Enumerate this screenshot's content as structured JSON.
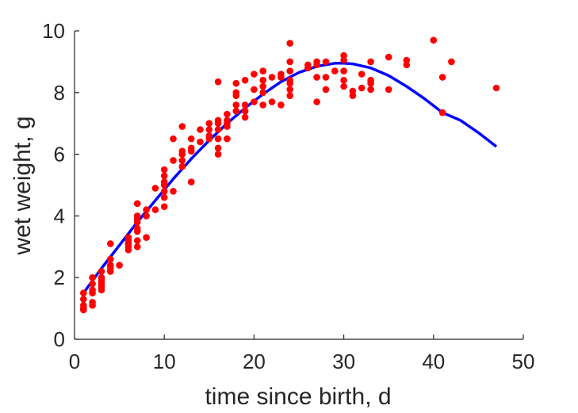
{
  "chart_data": {
    "type": "scatter",
    "xlabel": "time since birth, d",
    "ylabel": "wet weight, g",
    "xlim": [
      0,
      50
    ],
    "ylim": [
      0,
      10
    ],
    "xticks": [
      0,
      10,
      20,
      30,
      40,
      50
    ],
    "yticks": [
      0,
      2,
      4,
      6,
      8,
      10
    ],
    "grid": false,
    "series": [
      {
        "kind": "scatter",
        "color": "#ff0000",
        "points": [
          [
            1,
            1.5
          ],
          [
            1,
            1.3
          ],
          [
            1,
            1.1
          ],
          [
            1,
            1.0
          ],
          [
            1,
            0.95
          ],
          [
            2,
            2.0
          ],
          [
            2,
            1.8
          ],
          [
            2,
            1.6
          ],
          [
            2,
            1.5
          ],
          [
            2,
            1.2
          ],
          [
            2,
            1.1
          ],
          [
            3,
            2.2
          ],
          [
            3,
            2.0
          ],
          [
            3,
            1.9
          ],
          [
            3,
            1.8
          ],
          [
            3,
            1.7
          ],
          [
            3,
            1.6
          ],
          [
            4,
            3.1
          ],
          [
            4,
            2.6
          ],
          [
            4,
            2.4
          ],
          [
            4,
            2.3
          ],
          [
            4,
            2.2
          ],
          [
            5,
            2.4
          ],
          [
            6,
            3.3
          ],
          [
            6,
            3.2
          ],
          [
            6,
            3.1
          ],
          [
            6,
            3.0
          ],
          [
            6,
            2.9
          ],
          [
            7,
            4.4
          ],
          [
            7,
            4.0
          ],
          [
            7,
            3.9
          ],
          [
            7,
            3.8
          ],
          [
            7,
            3.6
          ],
          [
            7,
            3.5
          ],
          [
            7,
            3.2
          ],
          [
            7,
            3.0
          ],
          [
            8,
            4.2
          ],
          [
            8,
            4.0
          ],
          [
            8,
            3.3
          ],
          [
            9,
            4.9
          ],
          [
            9,
            4.2
          ],
          [
            10,
            5.5
          ],
          [
            10,
            5.3
          ],
          [
            10,
            5.1
          ],
          [
            10,
            5.0
          ],
          [
            10,
            4.8
          ],
          [
            10,
            4.6
          ],
          [
            10,
            4.3
          ],
          [
            11,
            6.5
          ],
          [
            11,
            5.8
          ],
          [
            11,
            4.8
          ],
          [
            12,
            6.9
          ],
          [
            12,
            6.1
          ],
          [
            12,
            6.0
          ],
          [
            12,
            5.8
          ],
          [
            12,
            5.6
          ],
          [
            13,
            6.5
          ],
          [
            13,
            6.2
          ],
          [
            13,
            6.1
          ],
          [
            13,
            5.1
          ],
          [
            14,
            6.8
          ],
          [
            14,
            6.4
          ],
          [
            15,
            7.0
          ],
          [
            15,
            6.8
          ],
          [
            15,
            6.6
          ],
          [
            15,
            6.5
          ],
          [
            16,
            8.35
          ],
          [
            16,
            7.1
          ],
          [
            16,
            7.0
          ],
          [
            16,
            6.8
          ],
          [
            16,
            6.5
          ],
          [
            16,
            6.2
          ],
          [
            16,
            6.0
          ],
          [
            17,
            7.3
          ],
          [
            17,
            7.1
          ],
          [
            17,
            7.0
          ],
          [
            17,
            6.9
          ],
          [
            17,
            6.5
          ],
          [
            18,
            8.3
          ],
          [
            18,
            8.0
          ],
          [
            18,
            7.9
          ],
          [
            18,
            7.6
          ],
          [
            18,
            7.4
          ],
          [
            19,
            8.4
          ],
          [
            19,
            7.6
          ],
          [
            19,
            7.4
          ],
          [
            19,
            7.2
          ],
          [
            20,
            8.6
          ],
          [
            20,
            8.1
          ],
          [
            20,
            7.7
          ],
          [
            21,
            8.7
          ],
          [
            21,
            8.4
          ],
          [
            21,
            8.2
          ],
          [
            21,
            8.0
          ],
          [
            21,
            7.6
          ],
          [
            22,
            8.5
          ],
          [
            22,
            7.7
          ],
          [
            23,
            8.6
          ],
          [
            23,
            8.5
          ],
          [
            23,
            7.6
          ],
          [
            24,
            9.6
          ],
          [
            24,
            9.0
          ],
          [
            24,
            8.7
          ],
          [
            24,
            8.4
          ],
          [
            24,
            8.3
          ],
          [
            24,
            8.1
          ],
          [
            24,
            7.9
          ],
          [
            26,
            8.9
          ],
          [
            26,
            8.8
          ],
          [
            27,
            9.0
          ],
          [
            27,
            8.9
          ],
          [
            27,
            8.5
          ],
          [
            27,
            7.7
          ],
          [
            28,
            9.0
          ],
          [
            28,
            8.5
          ],
          [
            28,
            8.1
          ],
          [
            29,
            8.7
          ],
          [
            30,
            9.2
          ],
          [
            30,
            9.05
          ],
          [
            30,
            8.7
          ],
          [
            30,
            8.4
          ],
          [
            30,
            8.2
          ],
          [
            31,
            8.05
          ],
          [
            31,
            7.9
          ],
          [
            32,
            8.6
          ],
          [
            32,
            8.15
          ],
          [
            33,
            9.0
          ],
          [
            33,
            8.4
          ],
          [
            33,
            8.3
          ],
          [
            33,
            8.1
          ],
          [
            35,
            9.15
          ],
          [
            35,
            8.1
          ],
          [
            37,
            9.05
          ],
          [
            37,
            8.9
          ],
          [
            40,
            9.7
          ],
          [
            41,
            8.5
          ],
          [
            41,
            7.35
          ],
          [
            42,
            9.0
          ],
          [
            47,
            8.15
          ]
        ]
      },
      {
        "kind": "line",
        "color": "#0000ff",
        "points": [
          [
            1,
            1.5
          ],
          [
            3,
            2.3
          ],
          [
            5,
            3.05
          ],
          [
            7,
            3.8
          ],
          [
            9,
            4.5
          ],
          [
            11,
            5.2
          ],
          [
            13,
            5.85
          ],
          [
            15,
            6.45
          ],
          [
            17,
            7.0
          ],
          [
            19,
            7.5
          ],
          [
            21,
            7.95
          ],
          [
            23,
            8.35
          ],
          [
            25,
            8.65
          ],
          [
            27,
            8.85
          ],
          [
            29,
            8.95
          ],
          [
            30,
            8.95
          ],
          [
            31,
            8.93
          ],
          [
            33,
            8.8
          ],
          [
            35,
            8.55
          ],
          [
            37,
            8.2
          ],
          [
            39,
            7.8
          ],
          [
            41,
            7.35
          ],
          [
            43,
            7.1
          ],
          [
            45,
            6.7
          ],
          [
            47,
            6.25
          ]
        ]
      }
    ]
  }
}
